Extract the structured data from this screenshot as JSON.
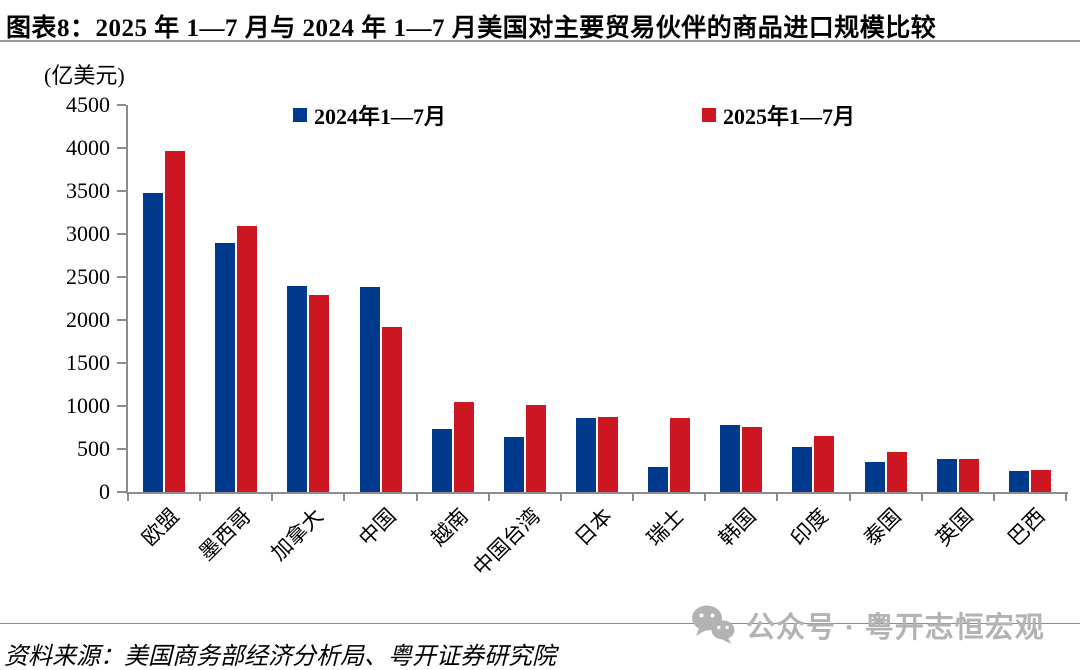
{
  "title": "图表8：2025 年 1—7 月与 2024 年 1—7 月美国对主要贸易伙伴的商品进口规模比较",
  "unit_label": "(亿美元)",
  "legend": [
    {
      "label": "2024年1—7月",
      "color": "#003A8C"
    },
    {
      "label": "2025年1—7月",
      "color": "#CC1722"
    }
  ],
  "chart_data": {
    "type": "bar",
    "title": "2025年1—7月与2024年1—7月美国对主要贸易伙伴的商品进口规模比较",
    "ylabel": "亿美元",
    "categories": [
      "欧盟",
      "墨西哥",
      "加拿大",
      "中国",
      "越南",
      "中国台湾",
      "日本",
      "瑞士",
      "韩国",
      "印度",
      "泰国",
      "英国",
      "巴西"
    ],
    "series": [
      {
        "name": "2024年1—7月",
        "color": "#003A8C",
        "values": [
          3480,
          2900,
          2400,
          2385,
          730,
          640,
          865,
          290,
          785,
          520,
          350,
          390,
          240
        ]
      },
      {
        "name": "2025年1—7月",
        "color": "#CC1722",
        "values": [
          3965,
          3090,
          2295,
          1920,
          1050,
          1010,
          875,
          865,
          755,
          650,
          465,
          390,
          260
        ]
      }
    ],
    "ylim": [
      0,
      4500
    ],
    "ytick_step": 500,
    "grid": false,
    "legend_position": "top"
  },
  "colors": {
    "axis": "#8C8C8C",
    "divider": "#9A9A9A",
    "watermark": "#B3B3B3"
  },
  "footer": {
    "source": "资料来源：美国商务部经济分析局、粤开证券研究院",
    "watermark": "公众号 · 粤开志恒宏观",
    "watermark_icon": "wechat-icon"
  }
}
